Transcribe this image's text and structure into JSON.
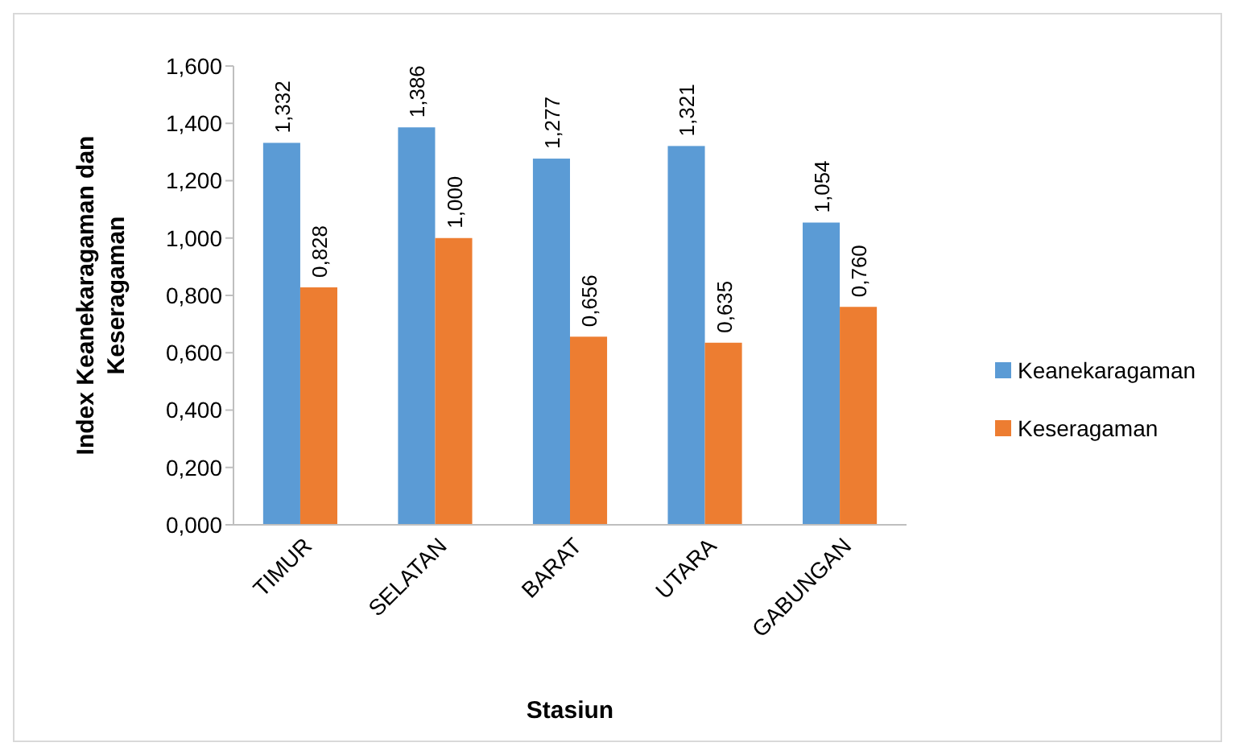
{
  "chart_data": {
    "type": "bar",
    "xlabel": "Stasiun",
    "ylabel": "Index Keanekaragaman dan Keseragaman",
    "categories": [
      "TIMUR",
      "SELATAN",
      "BARAT",
      "UTARA",
      "GABUNGAN"
    ],
    "series": [
      {
        "name": "Keanekaragaman",
        "color": "#5b9bd5",
        "values": [
          1.332,
          1.386,
          1.277,
          1.321,
          1.054
        ],
        "value_labels": [
          "1,332",
          "1,386",
          "1,277",
          "1,321",
          "1,054"
        ]
      },
      {
        "name": "Keseragaman",
        "color": "#ed7d31",
        "values": [
          0.828,
          1.0,
          0.656,
          0.635,
          0.76
        ],
        "value_labels": [
          "0,828",
          "1,000",
          "0,656",
          "0,635",
          "0,760"
        ]
      }
    ],
    "ylim": [
      0,
      1.6
    ],
    "yticks": [
      {
        "value": 0,
        "label": "0,000"
      },
      {
        "value": 0.2,
        "label": "0,200"
      },
      {
        "value": 0.4,
        "label": "0,400"
      },
      {
        "value": 0.6,
        "label": "0,600"
      },
      {
        "value": 0.8,
        "label": "0,800"
      },
      {
        "value": 1.0,
        "label": "1,000"
      },
      {
        "value": 1.2,
        "label": "1,200"
      },
      {
        "value": 1.4,
        "label": "1,400"
      },
      {
        "value": 1.6,
        "label": "1,600"
      }
    ],
    "grid": false,
    "legend": "right"
  }
}
